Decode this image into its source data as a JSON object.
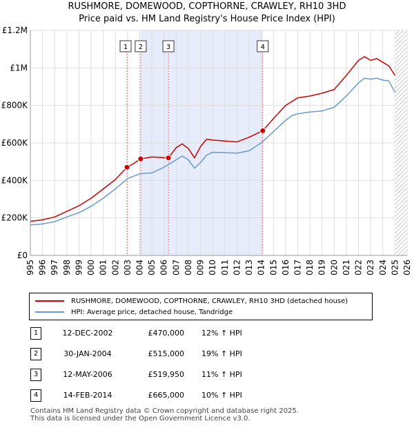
{
  "title_line1": "RUSHMORE, DOMEWOOD, COPTHORNE, CRAWLEY, RH10 3HD",
  "title_line2": "Price paid vs. HM Land Registry's House Price Index (HPI)",
  "colors": {
    "price_line": "#cc0000",
    "hpi_line": "#6699cc",
    "marker": "#cc0000",
    "shade": "#e6ecf9",
    "grid": "#dddddd",
    "vline": "#e06666"
  },
  "chart_data": {
    "type": "line",
    "title": "RUSHMORE, DOMEWOOD, COPTHORNE, CRAWLEY, RH10 3HD",
    "subtitle": "Price paid vs. HM Land Registry's House Price Index (HPI)",
    "xlabel": "",
    "ylabel": "",
    "xlim": [
      1995,
      2026
    ],
    "ylim": [
      0,
      1200000
    ],
    "y_ticks": [
      0,
      200000,
      400000,
      600000,
      800000,
      1000000,
      1200000
    ],
    "y_tick_labels": [
      "£0",
      "£200K",
      "£400K",
      "£600K",
      "£800K",
      "£1M",
      "£1.2M"
    ],
    "x_ticks": [
      1995,
      1996,
      1997,
      1998,
      1999,
      2000,
      2001,
      2002,
      2003,
      2004,
      2005,
      2006,
      2007,
      2008,
      2009,
      2010,
      2011,
      2012,
      2013,
      2014,
      2015,
      2016,
      2017,
      2018,
      2019,
      2020,
      2021,
      2022,
      2023,
      2024,
      2025,
      2026
    ],
    "x_tick_labels": [
      "1995",
      "1996",
      "1997",
      "1998",
      "1999",
      "2000",
      "2001",
      "2002",
      "2003",
      "2004",
      "2005",
      "2006",
      "2007",
      "2008",
      "2009",
      "2010",
      "2011",
      "2012",
      "2013",
      "2014",
      "2015",
      "2016",
      "2017",
      "2018",
      "2019",
      "2020",
      "2021",
      "2022",
      "2023",
      "2024",
      "2025",
      "2026"
    ],
    "grid": true,
    "shaded_regions": [
      [
        2004.08,
        2014.12
      ]
    ],
    "hatched_region": [
      2025.0,
      2026.0
    ],
    "series": [
      {
        "name": "RUSHMORE, DOMEWOOD, COPTHORNE, CRAWLEY, RH10 3HD (detached house)",
        "color": "#cc0000",
        "x": [
          1995.0,
          1996.0,
          1997.0,
          1998.0,
          1999.0,
          2000.0,
          2001.0,
          2002.0,
          2002.95,
          2003.5,
          2004.08,
          2005.0,
          2006.36,
          2007.0,
          2007.5,
          2008.0,
          2008.5,
          2009.0,
          2009.5,
          2010.0,
          2011.0,
          2012.0,
          2013.0,
          2014.12,
          2015.0,
          2016.0,
          2016.5,
          2017.0,
          2018.0,
          2019.0,
          2020.0,
          2021.0,
          2022.0,
          2022.5,
          2023.0,
          2023.5,
          2024.0,
          2024.5,
          2025.0
        ],
        "values": [
          182000,
          190000,
          205000,
          235000,
          265000,
          305000,
          355000,
          405000,
          470000,
          490000,
          515000,
          525000,
          519950,
          575000,
          595000,
          570000,
          520000,
          580000,
          620000,
          615000,
          610000,
          605000,
          630000,
          665000,
          730000,
          800000,
          820000,
          840000,
          850000,
          865000,
          885000,
          960000,
          1040000,
          1060000,
          1040000,
          1050000,
          1030000,
          1010000,
          960000
        ]
      },
      {
        "name": "HPI: Average price, detached house, Tandridge",
        "color": "#6699cc",
        "x": [
          1995.0,
          1996.0,
          1997.0,
          1998.0,
          1999.0,
          2000.0,
          2001.0,
          2002.0,
          2003.0,
          2004.0,
          2005.0,
          2006.0,
          2007.0,
          2007.5,
          2008.0,
          2008.5,
          2009.0,
          2009.5,
          2010.0,
          2011.0,
          2012.0,
          2013.0,
          2014.0,
          2015.0,
          2016.0,
          2016.5,
          2017.0,
          2018.0,
          2019.0,
          2020.0,
          2021.0,
          2022.0,
          2022.5,
          2023.0,
          2023.5,
          2024.0,
          2024.5,
          2025.0
        ],
        "values": [
          162000,
          168000,
          180000,
          205000,
          228000,
          262000,
          305000,
          355000,
          410000,
          435000,
          440000,
          470000,
          510000,
          530000,
          510000,
          465000,
          495000,
          535000,
          550000,
          548000,
          545000,
          558000,
          600000,
          660000,
          720000,
          745000,
          755000,
          765000,
          770000,
          790000,
          850000,
          920000,
          945000,
          940000,
          945000,
          935000,
          930000,
          870000
        ]
      }
    ],
    "sale_markers": [
      {
        "label": "1",
        "x": 2002.95,
        "value": 470000
      },
      {
        "label": "2",
        "x": 2004.08,
        "value": 515000
      },
      {
        "label": "3",
        "x": 2006.36,
        "value": 519950
      },
      {
        "label": "4",
        "x": 2014.12,
        "value": 665000
      }
    ]
  },
  "legend": {
    "price_label": "RUSHMORE, DOMEWOOD, COPTHORNE, CRAWLEY, RH10 3HD (detached house)",
    "hpi_label": "HPI: Average price, detached house, Tandridge"
  },
  "transactions": [
    {
      "num": "1",
      "date": "12-DEC-2002",
      "price": "£470,000",
      "hpi": "12% ↑ HPI"
    },
    {
      "num": "2",
      "date": "30-JAN-2004",
      "price": "£515,000",
      "hpi": "19% ↑ HPI"
    },
    {
      "num": "3",
      "date": "12-MAY-2006",
      "price": "£519,950",
      "hpi": "11% ↑ HPI"
    },
    {
      "num": "4",
      "date": "14-FEB-2014",
      "price": "£665,000",
      "hpi": "10% ↑ HPI"
    }
  ],
  "footer": {
    "line1": "Contains HM Land Registry data © Crown copyright and database right 2025.",
    "line2": "This data is licensed under the Open Government Licence v3.0."
  }
}
